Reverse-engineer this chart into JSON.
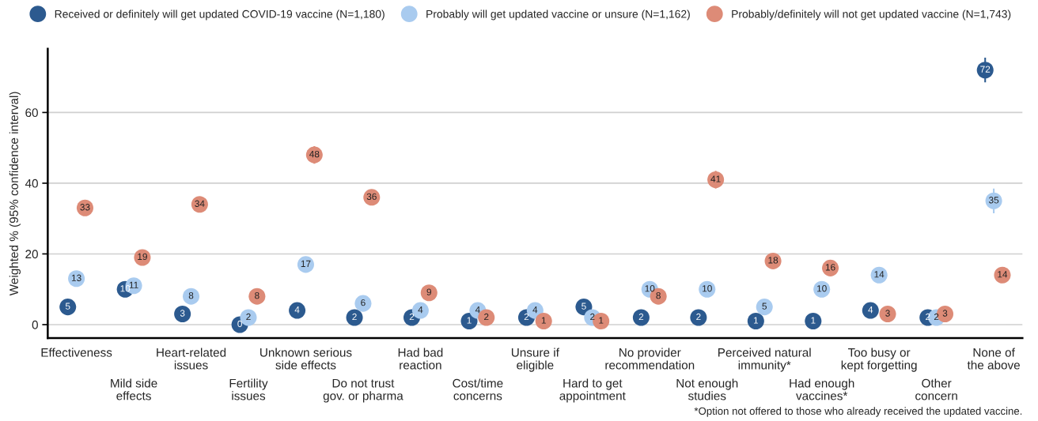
{
  "chart_data": {
    "type": "scatter",
    "categories": [
      "Effectiveness",
      "Mild side\neffects",
      "Heart-related\nissues",
      "Fertility\nissues",
      "Unknown serious\nside effects",
      "Do not trust\ngov. or pharma",
      "Had bad\nreaction",
      "Cost/time\nconcerns",
      "Unsure if\neligible",
      "Hard to get\nappointment",
      "No provider\nrecommendation",
      "Not enough\nstudies",
      "Perceived natural\nimmunity*",
      "Had enough\nvaccines*",
      "Too busy or\nkept forgetting",
      "Other\nconcern",
      "None of\nthe above"
    ],
    "series": [
      {
        "name": "Received or definitely will get updated COVID-19 vaccine (N=1,180)",
        "color": "#2c5a8f",
        "values": [
          5,
          10,
          3,
          0,
          4,
          2,
          2,
          1,
          2,
          5,
          2,
          2,
          1,
          1,
          4,
          2,
          72
        ],
        "errors": [
          null,
          null,
          null,
          null,
          null,
          null,
          null,
          null,
          null,
          null,
          null,
          null,
          null,
          null,
          null,
          null,
          3.5
        ]
      },
      {
        "name": "Probably will get updated vaccine or unsure (N=1,162)",
        "color": "#a9cbef",
        "values": [
          13,
          11,
          8,
          2,
          17,
          6,
          4,
          4,
          4,
          2,
          10,
          10,
          5,
          10,
          14,
          2,
          35
        ],
        "errors": [
          null,
          null,
          null,
          null,
          null,
          null,
          null,
          null,
          null,
          null,
          null,
          null,
          null,
          null,
          1.5,
          null,
          3.5
        ]
      },
      {
        "name": "Probably/definitely will not get updated vaccine (N=1,743)",
        "color": "#dd8b77",
        "values": [
          33,
          19,
          34,
          8,
          48,
          36,
          9,
          2,
          1,
          1,
          8,
          41,
          18,
          16,
          3,
          3,
          14
        ],
        "errors": [
          2,
          null,
          2,
          null,
          2.5,
          2,
          null,
          null,
          null,
          null,
          null,
          2.5,
          null,
          null,
          null,
          null,
          null
        ]
      }
    ],
    "ylabel": "Weighted % (95% confidence interval)",
    "ylim": [
      -3.8,
      78
    ],
    "yticks": [
      0,
      20,
      40,
      60
    ],
    "grid": "y",
    "legend": "top",
    "marker": "circle",
    "data_labels": true,
    "annotations": [
      "*Option not offered to those who already received the updated vaccine."
    ]
  }
}
